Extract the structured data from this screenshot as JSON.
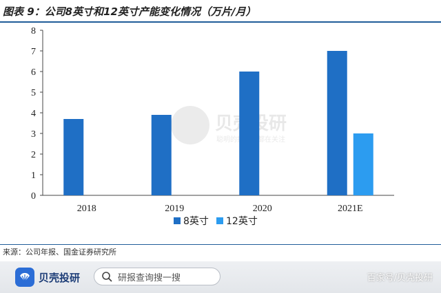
{
  "figure_title": "图表 9：公司8英寸和12英寸产能变化情况（万片/月）",
  "source_note": "来源：公司年报、国金证券研究所",
  "watermark": {
    "brand": "贝壳投研",
    "tagline": "聪明的投资者都在关注"
  },
  "footer": {
    "brand_name": "贝壳投研",
    "search_placeholder": "研报查询搜一搜",
    "credit": "百家号/贝壳投研"
  },
  "colors": {
    "series_8inch": "#1f6fc5",
    "series_12inch": "#2c9cf0",
    "title_rule": "#1f5c99"
  },
  "icons": [
    "shell-logo-icon",
    "search-icon"
  ],
  "chart_data": {
    "type": "bar",
    "title": "",
    "categories": [
      "2018",
      "2019",
      "2020",
      "2021E"
    ],
    "series": [
      {
        "name": "8英寸",
        "values": [
          3.7,
          3.9,
          6.0,
          7.0
        ]
      },
      {
        "name": "12英寸",
        "values": [
          null,
          null,
          null,
          3.0
        ]
      }
    ],
    "y_ticks": [
      "0",
      "1",
      "2",
      "3",
      "4",
      "5",
      "6",
      "7",
      "8"
    ],
    "ylim": [
      0,
      8
    ],
    "grid": false,
    "legend": "bottom",
    "xlabel": "",
    "ylabel": ""
  }
}
